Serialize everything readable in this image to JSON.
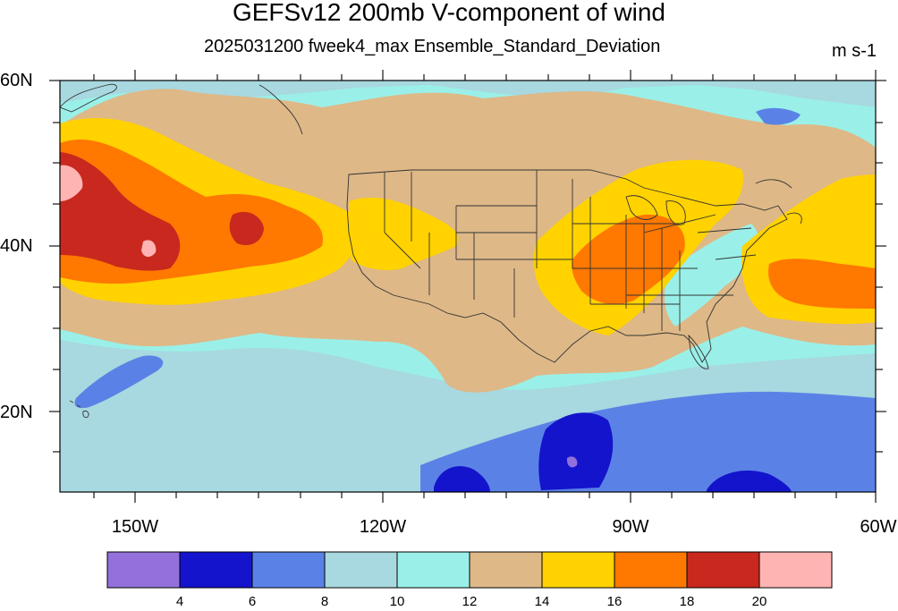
{
  "title": "GEFSv12 200mb V-component of wind",
  "subtitle": "2025031200 fweek4_max Ensemble_Standard_Deviation",
  "units": "m s-1",
  "lat_labels": [
    "60N",
    "40N",
    "20N"
  ],
  "lon_labels": [
    "150W",
    "120W",
    "90W",
    "60W"
  ],
  "colorbar": {
    "boundaries": [
      "4",
      "6",
      "8",
      "10",
      "12",
      "14",
      "16",
      "18",
      "20"
    ],
    "colors": [
      "#9370DB",
      "#1414CC",
      "#5A82E6",
      "#A8D8E0",
      "#9AF0E8",
      "#DEB887",
      "#FFD200",
      "#FF7800",
      "#C8281E",
      "#FFB4B4"
    ]
  },
  "map_extent": {
    "lon_min": -160,
    "lon_max": -60,
    "lat_min": 10,
    "lat_max": 60
  }
}
